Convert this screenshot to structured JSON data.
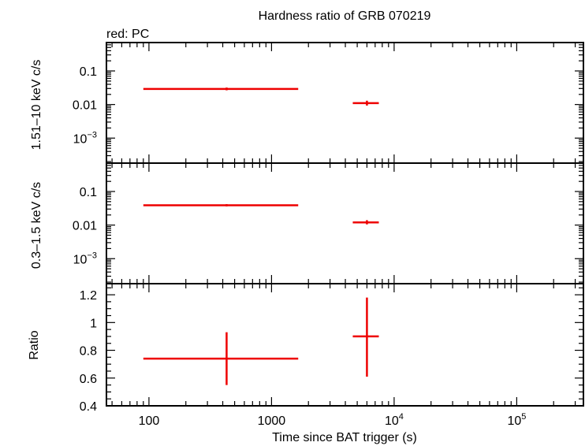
{
  "chart_data": {
    "type": "scatter",
    "title": "Hardness ratio of GRB 070219",
    "subtitle": "red: PC",
    "xlabel": "Time since BAT trigger (s)",
    "x_scale": "log",
    "xlim": [
      45,
      350000
    ],
    "x_ticks": [
      {
        "value": 100,
        "base": "100",
        "exp": ""
      },
      {
        "value": 1000,
        "base": "1000",
        "exp": ""
      },
      {
        "value": 10000,
        "base": "10",
        "exp": "4"
      },
      {
        "value": 100000,
        "base": "10",
        "exp": "5"
      }
    ],
    "panels": [
      {
        "id": "hard",
        "ylabel": "1.51–10 keV c/s",
        "y_scale": "log",
        "ylim": [
          0.00018,
          0.7
        ],
        "y_ticks": [
          {
            "value": 0.1,
            "base": "0.1",
            "exp": ""
          },
          {
            "value": 0.01,
            "base": "0.01",
            "exp": ""
          },
          {
            "value": 0.001,
            "base": "10",
            "exp": "−3"
          }
        ],
        "series": [
          {
            "color": "#ee0000",
            "points": [
              {
                "x": 430,
                "xlo": 90,
                "xhi": 1650,
                "y": 0.029,
                "ylo": 0.0265,
                "yhi": 0.032
              },
              {
                "x": 6000,
                "xlo": 4600,
                "xhi": 7500,
                "y": 0.011,
                "ylo": 0.0093,
                "yhi": 0.013
              }
            ]
          }
        ]
      },
      {
        "id": "soft",
        "ylabel": "0.3–1.5 keV c/s",
        "y_scale": "log",
        "ylim": [
          0.00018,
          0.7
        ],
        "y_ticks": [
          {
            "value": 0.1,
            "base": "0.1",
            "exp": ""
          },
          {
            "value": 0.01,
            "base": "0.01",
            "exp": ""
          },
          {
            "value": 0.001,
            "base": "10",
            "exp": "−3"
          }
        ],
        "series": [
          {
            "color": "#ee0000",
            "points": [
              {
                "x": 430,
                "xlo": 90,
                "xhi": 1650,
                "y": 0.039,
                "ylo": 0.036,
                "yhi": 0.042
              },
              {
                "x": 6000,
                "xlo": 4600,
                "xhi": 7500,
                "y": 0.012,
                "ylo": 0.0105,
                "yhi": 0.014
              }
            ]
          }
        ]
      },
      {
        "id": "ratio",
        "ylabel": "Ratio",
        "y_scale": "linear",
        "ylim": [
          0.4,
          1.28
        ],
        "y_ticks": [
          {
            "value": 0.4,
            "base": "0.4",
            "exp": ""
          },
          {
            "value": 0.6,
            "base": "0.6",
            "exp": ""
          },
          {
            "value": 0.8,
            "base": "0.8",
            "exp": ""
          },
          {
            "value": 1.0,
            "base": "1",
            "exp": ""
          },
          {
            "value": 1.2,
            "base": "1.2",
            "exp": ""
          }
        ],
        "series": [
          {
            "color": "#ee0000",
            "points": [
              {
                "x": 430,
                "xlo": 90,
                "xhi": 1650,
                "y": 0.74,
                "ylo": 0.55,
                "yhi": 0.93
              },
              {
                "x": 6000,
                "xlo": 4600,
                "xhi": 7500,
                "y": 0.9,
                "ylo": 0.61,
                "yhi": 1.18
              }
            ]
          }
        ]
      }
    ]
  }
}
